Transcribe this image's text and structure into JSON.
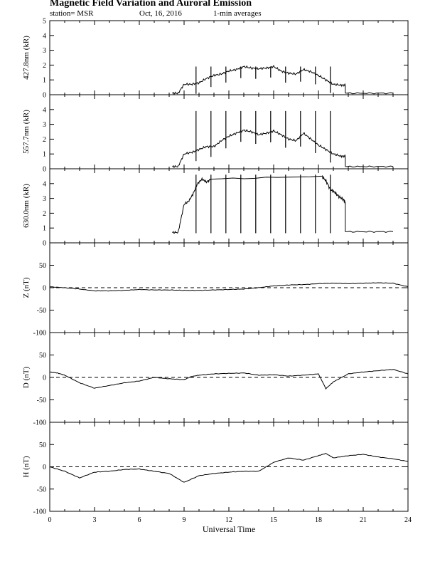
{
  "header": {
    "title": "Magnetic Field Variation and Auroral Emission",
    "station": "station= MSR",
    "date": "Oct, 16, 2016",
    "averaging": "1-min averages"
  },
  "chart_data": [
    {
      "type": "line",
      "ylabel": "427.8nm (kR)",
      "ylim": [
        0,
        5
      ],
      "yticks": [
        0,
        1,
        2,
        3,
        4,
        5
      ],
      "xlim": [
        0,
        24
      ],
      "x": [
        8.2,
        8.6,
        9.0,
        9.5,
        10.0,
        10.5,
        11.0,
        11.5,
        12.0,
        12.5,
        13.0,
        13.5,
        14.0,
        14.5,
        15.0,
        15.5,
        16.0,
        16.5,
        17.0,
        17.5,
        18.0,
        18.5,
        19.0,
        19.5,
        19.8
      ],
      "values": [
        0.1,
        0.1,
        0.7,
        0.7,
        0.8,
        1.1,
        1.3,
        1.4,
        1.6,
        1.7,
        1.9,
        1.8,
        1.75,
        1.8,
        1.9,
        1.6,
        1.45,
        1.4,
        1.7,
        1.55,
        1.3,
        1.0,
        0.7,
        0.65,
        0.65
      ],
      "gap_x": [
        19.8,
        23.0
      ],
      "gap_value": 0.1,
      "spikes_x": [
        9.8,
        10.8,
        11.8,
        12.8,
        13.8,
        14.8,
        15.8,
        16.8,
        17.8,
        18.8
      ],
      "spike_top": 1.9
    },
    {
      "type": "line",
      "ylabel": "557.7nm (kR)",
      "ylim": [
        0,
        5
      ],
      "yticks": [
        0,
        1,
        2,
        3,
        4
      ],
      "xlim": [
        0,
        24
      ],
      "x": [
        8.2,
        8.6,
        9.0,
        9.5,
        10.0,
        10.5,
        11.0,
        11.5,
        12.0,
        12.5,
        13.0,
        13.5,
        14.0,
        14.5,
        15.0,
        15.5,
        16.0,
        16.5,
        17.0,
        17.5,
        18.0,
        18.5,
        19.0,
        19.5,
        19.8
      ],
      "values": [
        0.15,
        0.15,
        1.0,
        1.1,
        1.3,
        1.5,
        1.5,
        1.9,
        2.2,
        2.4,
        2.6,
        2.5,
        2.3,
        2.4,
        2.55,
        2.3,
        2.0,
        1.9,
        2.4,
        2.0,
        1.6,
        1.3,
        1.0,
        0.85,
        0.85
      ],
      "gap_x": [
        19.8,
        23.0
      ],
      "gap_value": 0.15,
      "spikes_x": [
        9.8,
        10.8,
        11.8,
        12.8,
        13.8,
        14.8,
        15.8,
        16.8,
        17.8,
        18.8
      ],
      "spike_top": 3.9
    },
    {
      "type": "line",
      "ylabel": "630.0nm (kR)",
      "ylim": [
        0,
        5
      ],
      "yticks": [
        0,
        1,
        2,
        3,
        4
      ],
      "xlim": [
        0,
        24
      ],
      "x": [
        8.2,
        8.6,
        9.0,
        9.3,
        9.6,
        9.9,
        10.2,
        10.5,
        10.8
      ],
      "values": [
        0.7,
        0.7,
        2.6,
        2.8,
        3.3,
        4.0,
        4.3,
        4.1,
        4.3
      ],
      "x2": [
        18.2,
        18.5,
        18.8,
        19.1,
        19.4,
        19.7,
        19.8
      ],
      "values2": [
        4.5,
        4.2,
        3.6,
        3.4,
        3.1,
        2.9,
        2.7
      ],
      "gap_x": [
        19.8,
        23.0
      ],
      "gap_value": 0.75,
      "spikes_x": [
        9.8,
        10.8,
        11.8,
        12.8,
        13.8,
        14.8,
        15.8,
        16.8,
        17.8,
        18.8
      ],
      "spike_bottom": 0.65,
      "spike_top": 4.6
    },
    {
      "type": "line",
      "ylabel": "Z (nT)",
      "ylim": [
        -100,
        100
      ],
      "yticks": [
        -100,
        -50,
        0,
        50
      ],
      "xlim": [
        0,
        24
      ],
      "x": [
        0,
        1,
        2,
        3,
        4,
        5,
        6,
        7,
        8,
        9,
        10,
        11,
        12,
        13,
        14,
        15,
        16,
        17,
        18,
        19,
        20,
        21,
        22,
        23,
        24
      ],
      "values": [
        2,
        0,
        -3,
        -7,
        -7,
        -6,
        -4,
        -5,
        -5,
        -6,
        -6,
        -5,
        -4,
        -3,
        0,
        4,
        6,
        7,
        9,
        10,
        9,
        10,
        11,
        10,
        2
      ]
    },
    {
      "type": "line",
      "ylabel": "D (nT)",
      "ylim": [
        -100,
        100
      ],
      "yticks": [
        -100,
        -50,
        0,
        50
      ],
      "xlim": [
        0,
        24
      ],
      "x": [
        0,
        0.5,
        1,
        2,
        3,
        4,
        5,
        6,
        7,
        8,
        9,
        9.5,
        10,
        11,
        12,
        13,
        14,
        15,
        16,
        17,
        18,
        18.5,
        19,
        20,
        21,
        22,
        23,
        24
      ],
      "values": [
        12,
        10,
        5,
        -12,
        -24,
        -18,
        -12,
        -8,
        0,
        -3,
        -5,
        2,
        5,
        8,
        9,
        10,
        5,
        6,
        3,
        5,
        8,
        -25,
        -10,
        8,
        12,
        15,
        18,
        8
      ]
    },
    {
      "type": "line",
      "ylabel": "H (nT)",
      "ylim": [
        -100,
        100
      ],
      "yticks": [
        -100,
        -50,
        0,
        50
      ],
      "xlim": [
        0,
        24
      ],
      "xticks": [
        0,
        3,
        6,
        9,
        12,
        15,
        18,
        21,
        24
      ],
      "xlabel": "Universal Time",
      "x": [
        0,
        1,
        2,
        3,
        4,
        5,
        6,
        7,
        8,
        9,
        10,
        11,
        12,
        13,
        14,
        15,
        16,
        17,
        18,
        18.5,
        19,
        20,
        21,
        22,
        23,
        24
      ],
      "values": [
        0,
        -10,
        -25,
        -12,
        -10,
        -6,
        -5,
        -10,
        -15,
        -35,
        -20,
        -15,
        -12,
        -10,
        -10,
        10,
        20,
        15,
        25,
        30,
        20,
        25,
        28,
        22,
        18,
        12
      ]
    }
  ]
}
